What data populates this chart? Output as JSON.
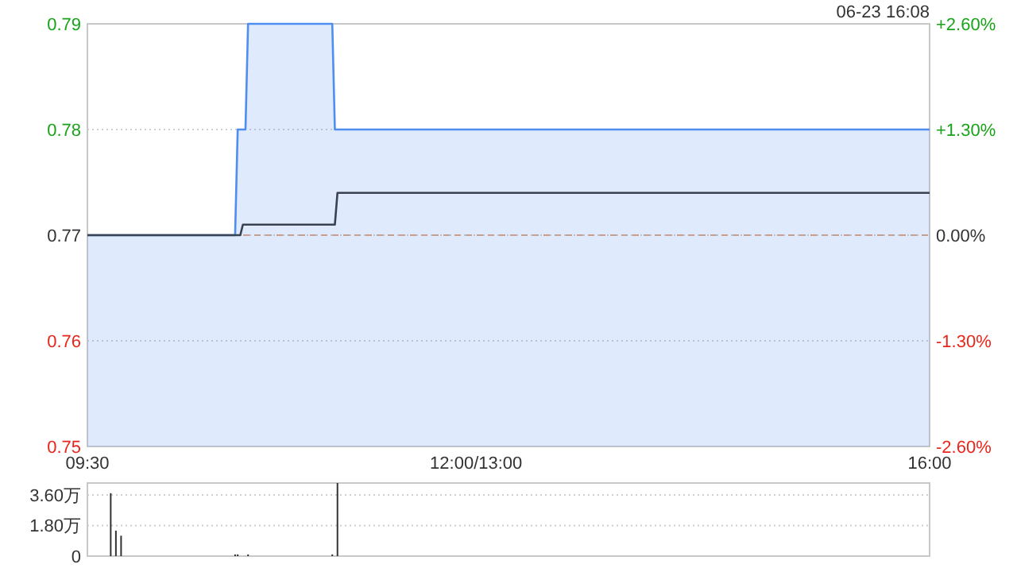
{
  "chart_data": [
    {
      "type": "area",
      "annotations": [
        "06-23 16:08"
      ],
      "series": [
        {
          "color": "#4f8ef0",
          "x": [
            9.5,
            10.64,
            10.66,
            10.72,
            10.74,
            11.39,
            11.41,
            16
          ],
          "values": [
            0.77,
            0.77,
            0.78,
            0.78,
            0.79,
            0.79,
            0.78,
            0.78
          ]
        },
        {
          "type": "line",
          "color": "#3a4250",
          "x": [
            9.5,
            10.68,
            10.7,
            11.41,
            11.43,
            16
          ],
          "values": [
            0.77,
            0.77,
            0.771,
            0.771,
            0.774,
            0.774
          ]
        }
      ],
      "xlim": [
        9.5,
        16
      ],
      "xticks": [
        {
          "value": 9.5,
          "label": "09:30"
        },
        {
          "value": 12.5,
          "label": "12:00/13:00"
        },
        {
          "value": 16,
          "label": "16:00"
        }
      ],
      "ylim": [
        0.75,
        0.79
      ],
      "yticks": [
        0.75,
        0.76,
        0.77,
        0.78,
        0.79
      ],
      "y2lim": [
        -2.6,
        2.6
      ],
      "y2ticks": [
        {
          "value": -2.6,
          "label": "-2.60%"
        },
        {
          "value": -1.3,
          "label": "-1.30%"
        },
        {
          "value": 0,
          "label": "0.00%"
        },
        {
          "value": 1.3,
          "label": "+1.30%"
        },
        {
          "value": 2.6,
          "label": "+2.60%"
        }
      ],
      "ref_lines": [
        {
          "axis": "y",
          "value": 0.77,
          "color": "#e8a07a",
          "line_style": "dashed"
        }
      ],
      "grid": "y"
    },
    {
      "type": "bar",
      "color": "#333333",
      "x": [
        9.68,
        9.72,
        9.76,
        10.64,
        10.66,
        10.74,
        11.39,
        11.43
      ],
      "values": [
        3.7,
        1.5,
        1.2,
        0.1,
        0.1,
        0.1,
        0.1,
        4.3
      ],
      "xlim": [
        9.5,
        16
      ],
      "ylim": [
        0,
        4.3
      ],
      "yticks": [
        0,
        {
          "value": 1.8,
          "label": "1.80万"
        },
        {
          "value": 3.6,
          "label": "3.60万"
        }
      ],
      "tick_labels": "y",
      "grid": "y"
    }
  ]
}
